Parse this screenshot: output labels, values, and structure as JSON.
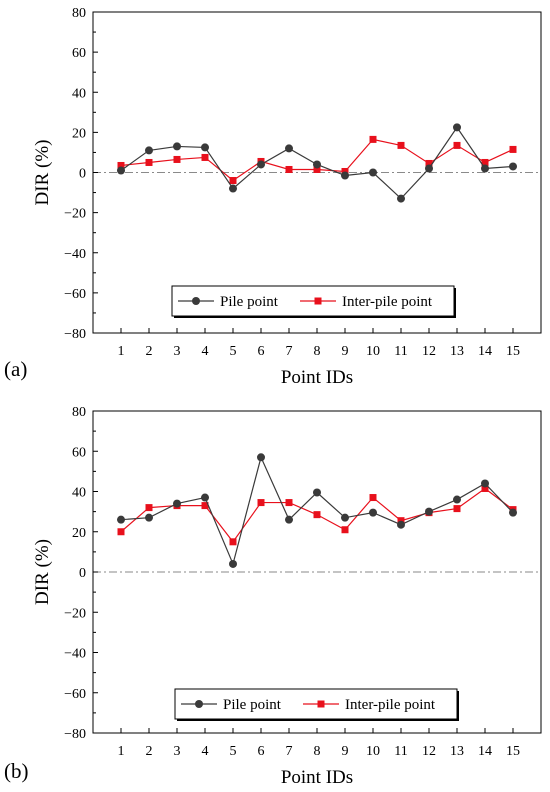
{
  "chart_data": [
    {
      "type": "line",
      "panel_label": "(a)",
      "xlabel": "Point IDs",
      "ylabel": "DIR (%)",
      "categories": [
        "1",
        "2",
        "3",
        "4",
        "5",
        "6",
        "7",
        "8",
        "9",
        "10",
        "11",
        "12",
        "13",
        "14",
        "15"
      ],
      "ylim": [
        -80,
        80
      ],
      "yticks": [
        "80",
        "60",
        "40",
        "20",
        "0",
        "−20",
        "−40",
        "−60",
        "−80"
      ],
      "reference_line": 0,
      "legend_position": "bottom-center",
      "series": [
        {
          "name": "Pile point",
          "color": "#3a3a3a",
          "marker": "circle",
          "values": [
            1,
            11,
            13,
            12.5,
            -8,
            4,
            12,
            4,
            -1.5,
            0,
            -13,
            2,
            22.5,
            2,
            3
          ]
        },
        {
          "name": "Inter-pile point",
          "color": "#e8101c",
          "marker": "square",
          "values": [
            3.5,
            5,
            6.5,
            7.5,
            -4,
            5.5,
            1.5,
            1.5,
            0.5,
            16.5,
            13.5,
            4.5,
            13.5,
            5,
            11.5
          ]
        }
      ]
    },
    {
      "type": "line",
      "panel_label": "(b)",
      "xlabel": "Point IDs",
      "ylabel": "DIR (%)",
      "categories": [
        "1",
        "2",
        "3",
        "4",
        "5",
        "6",
        "7",
        "8",
        "9",
        "10",
        "11",
        "12",
        "13",
        "14",
        "15"
      ],
      "ylim": [
        -80,
        80
      ],
      "yticks": [
        "80",
        "60",
        "40",
        "20",
        "0",
        "−20",
        "−40",
        "−60",
        "−80"
      ],
      "reference_line": 0,
      "legend_position": "bottom-center",
      "series": [
        {
          "name": "Pile point",
          "color": "#3a3a3a",
          "marker": "circle",
          "values": [
            26,
            27,
            34,
            37,
            4,
            57,
            26,
            39.5,
            27,
            29.5,
            23.5,
            30,
            36,
            44,
            29.5
          ]
        },
        {
          "name": "Inter-pile point",
          "color": "#e8101c",
          "marker": "square",
          "values": [
            20,
            32,
            33,
            33,
            15,
            34.5,
            34.5,
            28.5,
            21,
            37,
            25.5,
            29.5,
            31.5,
            41.5,
            31
          ]
        }
      ]
    }
  ]
}
